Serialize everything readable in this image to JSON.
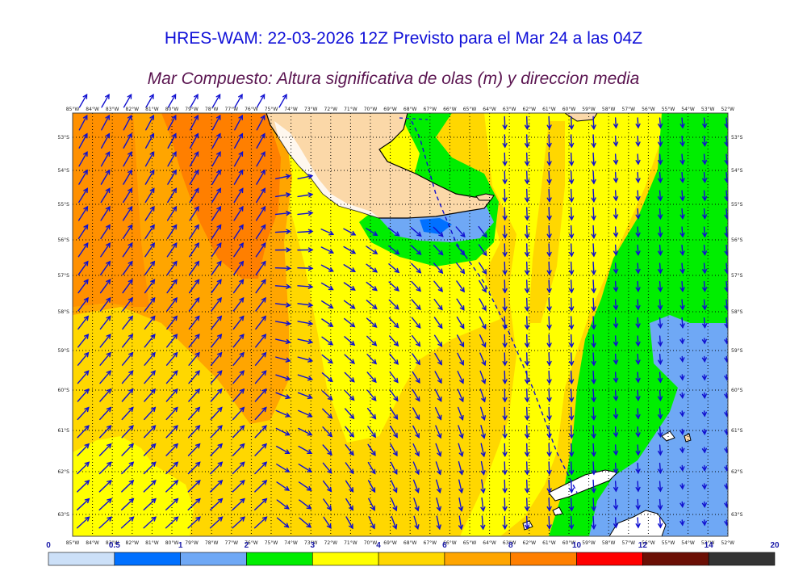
{
  "title": "HRES-WAM: 22-03-2026 12Z Previsto para el Mar 24 a las 04Z",
  "subtitle": "Mar Compuesto: Altura significativa de olas (m) y direccion media",
  "map": {
    "lon_labels": [
      "85°W",
      "84°W",
      "83°W",
      "82°W",
      "81°W",
      "80°W",
      "79°W",
      "78°W",
      "77°W",
      "76°W",
      "75°W",
      "74°W",
      "73°W",
      "72°W",
      "71°W",
      "70°W",
      "69°W",
      "68°W",
      "67°W",
      "66°W",
      "65°W",
      "64°W",
      "63°W",
      "62°W",
      "61°W",
      "60°W",
      "59°W",
      "58°W",
      "57°W",
      "56°W",
      "55°W",
      "54°W",
      "53°W",
      "52°W"
    ],
    "lat_labels": [
      "53°S",
      "54°S",
      "55°S",
      "56°S",
      "57°S",
      "58°S",
      "59°S",
      "60°S",
      "61°S",
      "62°S",
      "63°S"
    ],
    "colors": {
      "land": "#fbd8a8",
      "wave_3_4": "#ffff00",
      "wave_4_6": "#ffd700",
      "wave_6_8": "#ffa500",
      "wave_8_10": "#ff7f00",
      "wave_2_3": "#00ee00",
      "wave_1_2": "#6fa8f5",
      "wave_0_5_1": "#0070ff",
      "arrow": "#1010d0"
    }
  },
  "colorbar": {
    "ticks": [
      "0",
      "0.5",
      "1",
      "2",
      "3",
      "4",
      "6",
      "8",
      "10",
      "12",
      "14",
      "20"
    ],
    "colors": [
      "#cce0f8",
      "#0070ff",
      "#6fa8f5",
      "#00ee00",
      "#ffff00",
      "#ffd700",
      "#ffa500",
      "#ff7f00",
      "#ff0000",
      "#6b0f05",
      "#333333"
    ]
  }
}
